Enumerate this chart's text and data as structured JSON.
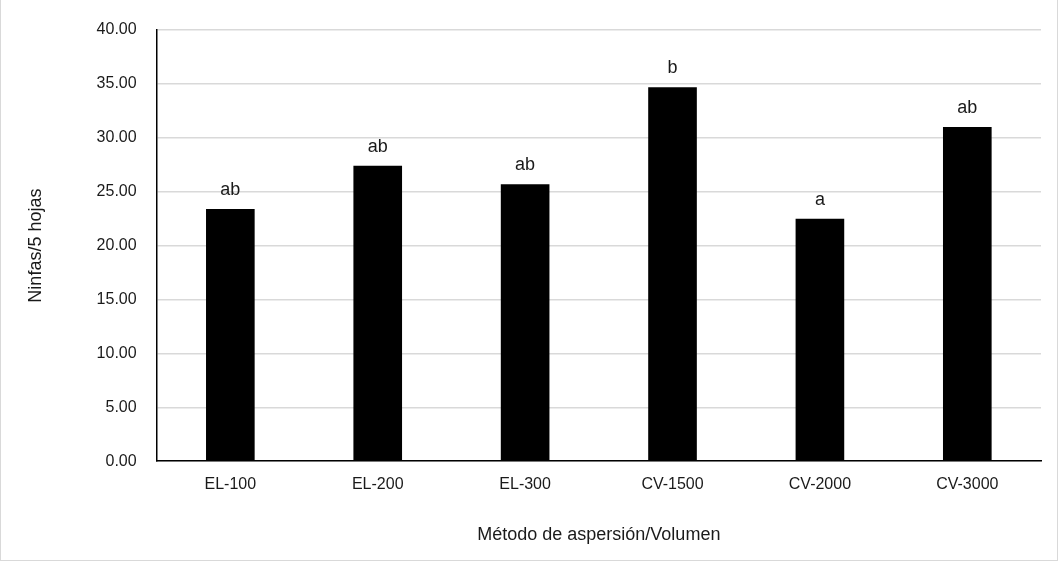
{
  "chart_data": {
    "type": "bar",
    "xlabel": "Método de aspersión/Volumen",
    "ylabel": "Ninfas/5 hojas",
    "categories": [
      "EL-100",
      "EL-200",
      "EL-300",
      "CV-1500",
      "CV-2000",
      "CV-3000"
    ],
    "values": [
      23.4,
      27.4,
      25.7,
      34.7,
      22.5,
      31.0
    ],
    "color": "#000000",
    "ylim": [
      0,
      40
    ],
    "yticks": [
      {
        "value": 0,
        "label": "0.00"
      },
      {
        "value": 5,
        "label": "5.00"
      },
      {
        "value": 10,
        "label": "10.00"
      },
      {
        "value": 15,
        "label": "15.00"
      },
      {
        "value": 20,
        "label": "20.00"
      },
      {
        "value": 25,
        "label": "25.00"
      },
      {
        "value": 30,
        "label": "30.00"
      },
      {
        "value": 35,
        "label": "35.00"
      },
      {
        "value": 40,
        "label": "40.00"
      }
    ],
    "grid": "y",
    "legend": false,
    "annotations": [
      {
        "text": "ab",
        "x": "EL-100",
        "y": 23.4
      },
      {
        "text": "ab",
        "x": "EL-200",
        "y": 27.4
      },
      {
        "text": "ab",
        "x": "EL-300",
        "y": 25.7
      },
      {
        "text": "b",
        "x": "CV-1500",
        "y": 34.7
      },
      {
        "text": "a",
        "x": "CV-2000",
        "y": 22.5
      },
      {
        "text": "ab",
        "x": "CV-3000",
        "y": 31.0
      }
    ]
  }
}
